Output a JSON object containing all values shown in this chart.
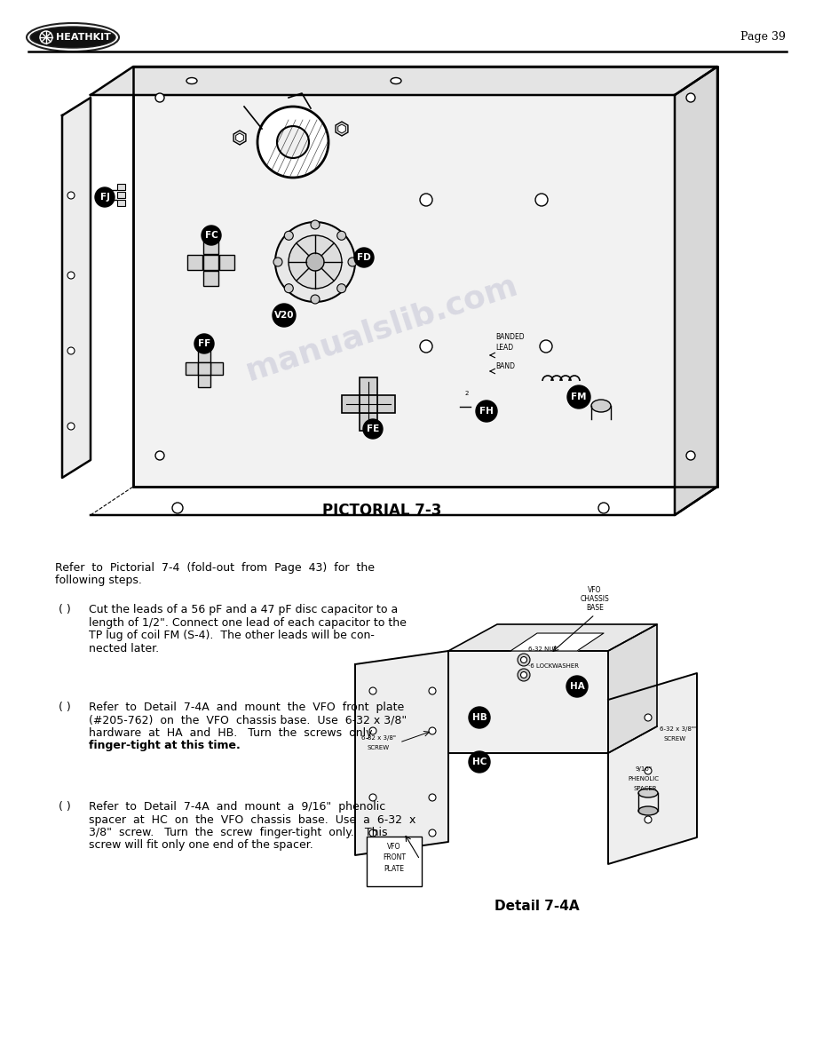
{
  "page_number": "Page 39",
  "title_pictorial": "PICTORIAL 7-3",
  "detail_title": "Detail 7-4A",
  "bg_color": "#ffffff",
  "text_color": "#000000",
  "intro_line1": "Refer  to  Pictorial  7-4  (fold-out  from  Page  43)  for  the",
  "intro_line2": "following steps.",
  "b1_marker": "( )",
  "b1_line1": "Cut the leads of a 56 pF and a 47 pF disc capacitor to a",
  "b1_line2": "length of 1/2\". Connect one lead of each capacitor to the",
  "b1_line3": "TP lug of coil FM (S-4).  The other leads will be con-",
  "b1_line4": "nected later.",
  "b2_marker": "( )",
  "b2_line1": "Refer  to  Detail  7-4A  and  mount  the  VFO  front  plate",
  "b2_line2": "(#205-762)  on  the  VFO  chassis base.  Use  6-32 x 3/8\"",
  "b2_line3": "hardware  at  HA  and  HB.   Turn  the  screws  only",
  "b2_line4": "finger-tight at this time.",
  "b3_marker": "( )",
  "b3_line1": "Refer  to  Detail  7-4A  and  mount  a  9/16\"  phenolic",
  "b3_line2": "spacer  at  HC  on  the  VFO  chassis  base.  Use  a  6-32  x",
  "b3_line3": "3/8\"  screw.   Turn  the  screw  finger-tight  only.   This",
  "b3_line4": "screw will fit only one end of the spacer.",
  "watermark_text": "manualslib.com",
  "watermark_color": "#9999bb",
  "watermark_alpha": 0.28,
  "font_size_body": 9.0,
  "font_size_title": 12,
  "font_size_page": 9,
  "font_size_detail": 11
}
